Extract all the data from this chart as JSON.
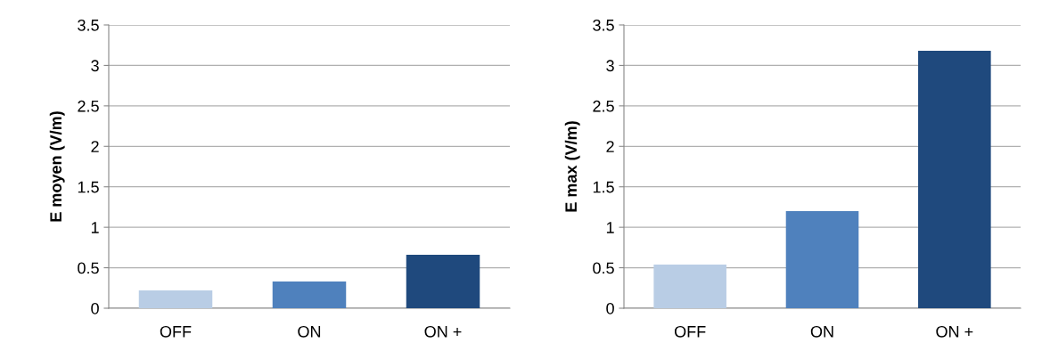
{
  "chart_data": [
    {
      "type": "bar",
      "categories": [
        "OFF",
        "ON",
        "ON +"
      ],
      "values": [
        0.22,
        0.33,
        0.66
      ],
      "colors": [
        "#b9cde5",
        "#4f81bd",
        "#1f497d"
      ],
      "ylabel": "E moyen (V/m)",
      "ylim": [
        0,
        3.5
      ],
      "yticks": [
        {
          "value": 0,
          "label": "0"
        },
        0.5,
        1,
        1.5,
        2,
        2.5,
        3,
        3.5
      ],
      "grid": "y",
      "legend": false
    },
    {
      "type": "bar",
      "categories": [
        "OFF",
        "ON",
        "ON +"
      ],
      "values": [
        0.54,
        1.2,
        3.18
      ],
      "colors": [
        "#b9cde5",
        "#4f81bd",
        "#1f497d"
      ],
      "ylabel": "E max (V/m)",
      "ylim": [
        0,
        3.5
      ],
      "yticks": [
        {
          "value": 0,
          "label": "0"
        },
        0.5,
        1,
        1.5,
        2,
        2.5,
        3,
        3.5
      ],
      "grid": "y",
      "legend": false
    }
  ]
}
